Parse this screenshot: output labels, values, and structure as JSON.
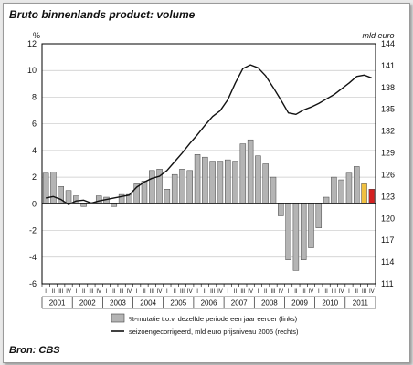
{
  "title": "Bruto binnenlands product: volume",
  "source": "Bron: CBS",
  "colors": {
    "bar": "#b4b4b4",
    "bar_stroke": "#444444",
    "line": "#111111",
    "highlight_2011_q3": "#f0c040",
    "highlight_2011_q4": "#d42020"
  },
  "chart_data": {
    "type": "bar",
    "title": "Bruto binnenlands product: volume",
    "ylabel_left": "%",
    "ylabel_right": "mld euro",
    "ylim_left": [
      -6,
      12
    ],
    "ylim_right": [
      111,
      144
    ],
    "left_ticks": [
      -6,
      -4,
      -2,
      0,
      2,
      4,
      6,
      8,
      10,
      12
    ],
    "right_ticks": [
      111,
      114,
      117,
      120,
      123,
      126,
      129,
      132,
      135,
      138,
      141,
      144
    ],
    "years": [
      "2001",
      "2002",
      "2003",
      "2004",
      "2005",
      "2006",
      "2007",
      "2008",
      "2009",
      "2010",
      "2011"
    ],
    "quarter_labels": [
      "I",
      "II",
      "III",
      "IV"
    ],
    "grid": true,
    "legend_position": "bottom",
    "series": [
      {
        "name": "%-mutatie t.o.v. dezelfde periode een jaar eerder (links)",
        "type": "bar",
        "axis": "left",
        "values": [
          2.3,
          2.4,
          1.3,
          1.0,
          0.6,
          -0.2,
          0.1,
          0.6,
          0.5,
          -0.2,
          0.7,
          0.7,
          1.5,
          1.7,
          2.5,
          2.6,
          1.1,
          2.2,
          2.6,
          2.5,
          3.7,
          3.5,
          3.2,
          3.2,
          3.3,
          3.2,
          4.5,
          4.8,
          3.6,
          3.0,
          2.0,
          -0.9,
          -4.2,
          -5.0,
          -4.2,
          -3.3,
          -1.8,
          0.5,
          2.0,
          1.8,
          2.3,
          2.8,
          1.5,
          1.1
        ]
      },
      {
        "name": "seizoengecorrigeerd, mld euro prijsniveau 2005 (rechts)",
        "type": "line",
        "axis": "right",
        "values": [
          122.8,
          123.0,
          122.6,
          121.9,
          122.4,
          122.5,
          122.1,
          122.4,
          122.6,
          122.8,
          123.0,
          123.2,
          124.3,
          125.0,
          125.5,
          125.8,
          126.6,
          127.8,
          129.0,
          130.3,
          131.5,
          132.8,
          134.0,
          134.8,
          136.3,
          138.6,
          140.6,
          141.1,
          140.7,
          139.6,
          138.0,
          136.3,
          134.5,
          134.3,
          134.9,
          135.3,
          135.8,
          136.4,
          137.0,
          137.8,
          138.6,
          139.5,
          139.7,
          139.3
        ]
      }
    ]
  }
}
